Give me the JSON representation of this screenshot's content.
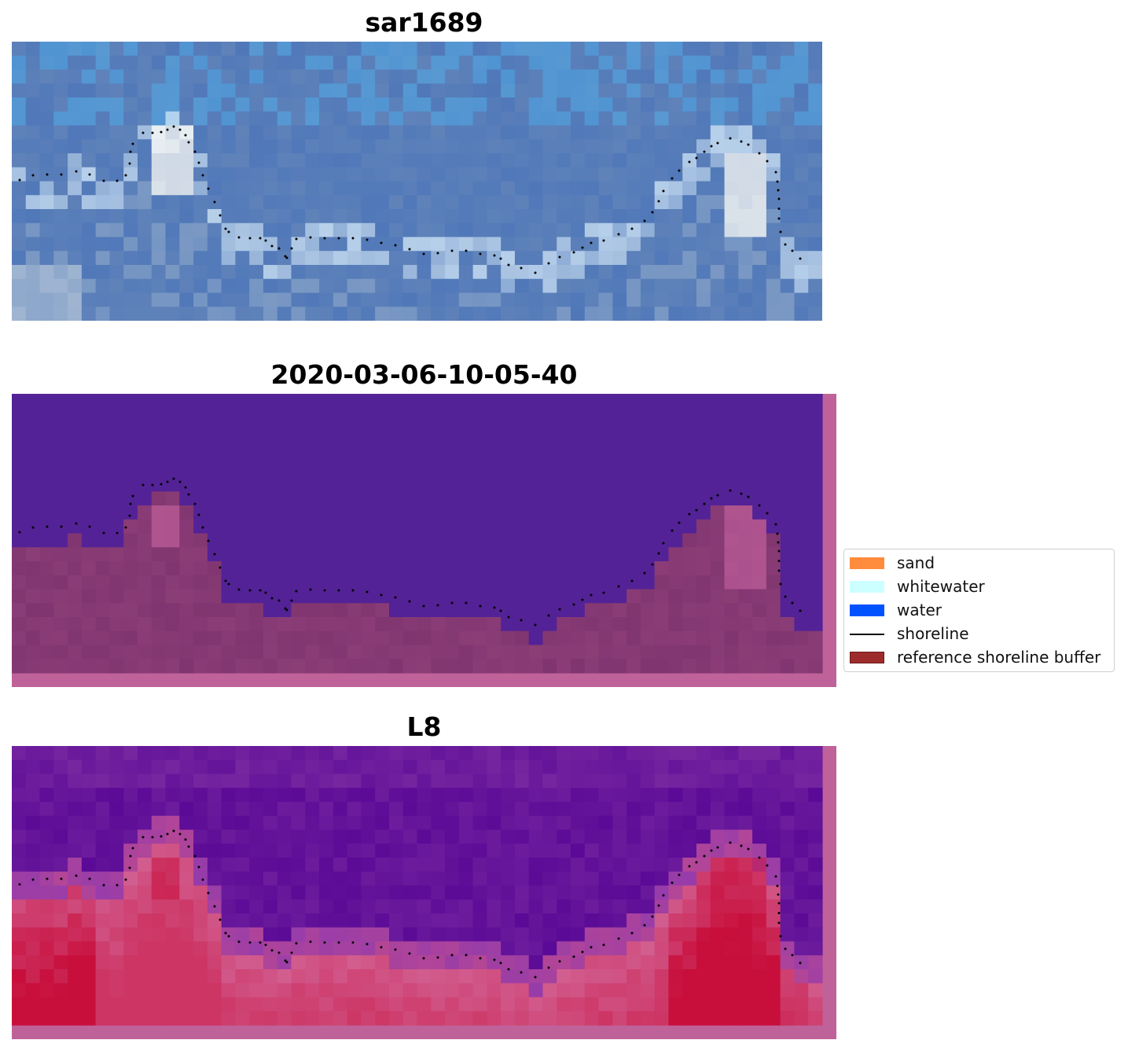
{
  "panels": [
    {
      "title": "sar1689",
      "style": "rgb"
    },
    {
      "title": "2020-03-06-10-05-40",
      "style": "classified"
    },
    {
      "title": "L8",
      "style": "index"
    }
  ],
  "legend": {
    "items": [
      {
        "label": "sand",
        "color": "#ff8c3c",
        "kind": "patch"
      },
      {
        "label": "whitewater",
        "color": "#ccffff",
        "kind": "patch"
      },
      {
        "label": "water",
        "color": "#0052ff",
        "kind": "patch"
      },
      {
        "label": "shoreline",
        "color": "#000000",
        "kind": "line"
      },
      {
        "label": "reference shoreline buffer",
        "color": "#9e2b2b",
        "kind": "patch"
      }
    ]
  },
  "colors": {
    "buffer_overlay": "#c0629a",
    "classified_water": "#532296",
    "classified_land": "#803570",
    "shoreline_dots": "#000000"
  }
}
